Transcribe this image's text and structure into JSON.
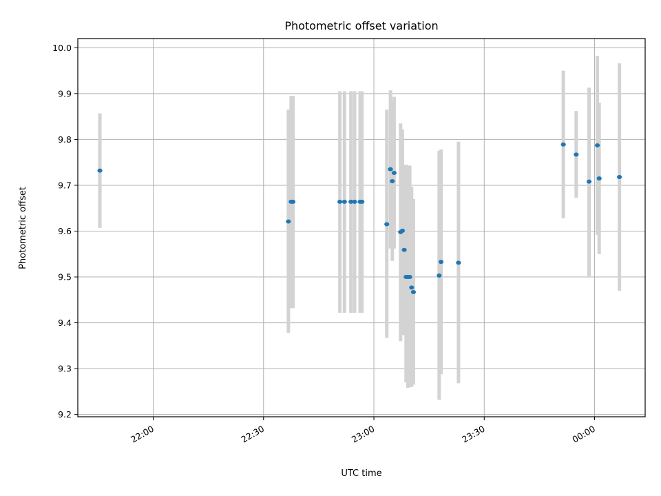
{
  "chart_data": {
    "type": "scatter",
    "title": "Photometric offset variation",
    "xlabel": "UTC time",
    "ylabel": "Photometric offset",
    "xlim": [
      "21:39:30",
      "00:13:45"
    ],
    "ylim": [
      9.195,
      10.02
    ],
    "x_ticks": [
      "22:00",
      "22:30",
      "23:00",
      "23:30",
      "00:00"
    ],
    "y_ticks": [
      "9.2",
      "9.3",
      "9.4",
      "9.5",
      "9.6",
      "9.7",
      "9.8",
      "9.9",
      "10.0"
    ],
    "grid": true,
    "point_color": "#1f77b4",
    "errorbar_color": "#d3d3d3",
    "points": [
      {
        "x": "21:45:30",
        "y": 9.732,
        "ylow": 9.607,
        "yhigh": 9.857
      },
      {
        "x": "22:36:45",
        "y": 9.621,
        "ylow": 9.378,
        "yhigh": 9.865
      },
      {
        "x": "22:37:30",
        "y": 9.664,
        "ylow": 9.432,
        "yhigh": 9.895
      },
      {
        "x": "22:38:00",
        "y": 9.664,
        "ylow": 9.432,
        "yhigh": 9.895
      },
      {
        "x": "22:50:45",
        "y": 9.664,
        "ylow": 9.422,
        "yhigh": 9.905
      },
      {
        "x": "22:52:00",
        "y": 9.664,
        "ylow": 9.422,
        "yhigh": 9.905
      },
      {
        "x": "22:53:45",
        "y": 9.664,
        "ylow": 9.422,
        "yhigh": 9.905
      },
      {
        "x": "22:54:45",
        "y": 9.664,
        "ylow": 9.422,
        "yhigh": 9.905
      },
      {
        "x": "22:56:15",
        "y": 9.664,
        "ylow": 9.422,
        "yhigh": 9.905
      },
      {
        "x": "22:56:45",
        "y": 9.664,
        "ylow": 9.422,
        "yhigh": 9.905
      },
      {
        "x": "23:03:30",
        "y": 9.615,
        "ylow": 9.367,
        "yhigh": 9.865
      },
      {
        "x": "23:04:30",
        "y": 9.735,
        "ylow": 9.562,
        "yhigh": 9.907
      },
      {
        "x": "23:05:00",
        "y": 9.709,
        "ylow": 9.535,
        "yhigh": 9.883
      },
      {
        "x": "23:05:30",
        "y": 9.727,
        "ylow": 9.562,
        "yhigh": 9.893
      },
      {
        "x": "23:07:15",
        "y": 9.598,
        "ylow": 9.36,
        "yhigh": 9.835
      },
      {
        "x": "23:07:45",
        "y": 9.601,
        "ylow": 9.373,
        "yhigh": 9.822
      },
      {
        "x": "23:08:15",
        "y": 9.559,
        "ylow": 9.373,
        "yhigh": 9.745
      },
      {
        "x": "23:08:45",
        "y": 9.5,
        "ylow": 9.27,
        "yhigh": 9.745
      },
      {
        "x": "23:09:15",
        "y": 9.5,
        "ylow": 9.258,
        "yhigh": 9.743
      },
      {
        "x": "23:09:45",
        "y": 9.5,
        "ylow": 9.26,
        "yhigh": 9.743
      },
      {
        "x": "23:10:15",
        "y": 9.477,
        "ylow": 9.26,
        "yhigh": 9.697
      },
      {
        "x": "23:10:45",
        "y": 9.467,
        "ylow": 9.265,
        "yhigh": 9.67
      },
      {
        "x": "23:17:45",
        "y": 9.503,
        "ylow": 9.232,
        "yhigh": 9.775
      },
      {
        "x": "23:18:15",
        "y": 9.533,
        "ylow": 9.288,
        "yhigh": 9.778
      },
      {
        "x": "23:23:00",
        "y": 9.531,
        "ylow": 9.268,
        "yhigh": 9.795
      },
      {
        "x": "23:51:30",
        "y": 9.789,
        "ylow": 9.628,
        "yhigh": 9.95
      },
      {
        "x": "23:55:00",
        "y": 9.767,
        "ylow": 9.673,
        "yhigh": 9.862
      },
      {
        "x": "23:58:30",
        "y": 9.708,
        "ylow": 9.5,
        "yhigh": 9.913
      },
      {
        "x": "00:00:45",
        "y": 9.787,
        "ylow": 9.592,
        "yhigh": 9.982
      },
      {
        "x": "00:01:15",
        "y": 9.715,
        "ylow": 9.55,
        "yhigh": 9.88
      },
      {
        "x": "00:06:45",
        "y": 9.718,
        "ylow": 9.47,
        "yhigh": 9.966
      }
    ]
  }
}
